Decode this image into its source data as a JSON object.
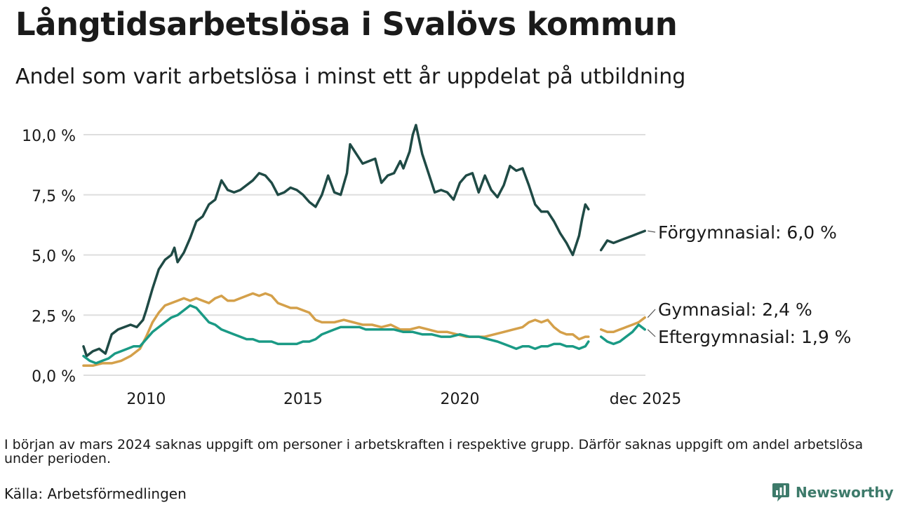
{
  "header": {
    "title": "Långtidsarbetslösa i Svalövs kommun",
    "subtitle": "Andel som varit arbetslösa i minst ett år uppdelat på utbildning"
  },
  "footer": {
    "note": "I början av mars 2024 saknas uppgift om personer i arbetskraften i respektive grupp. Därför saknas uppgift om andel arbetslösa under perioden.",
    "source": "Källa: Arbetsförmedlingen",
    "brand": "Newsworthy"
  },
  "colors": {
    "forgymnasial": "#1f4a45",
    "gymnasial": "#d4a04a",
    "eftergymnasial": "#1a9a85",
    "grid": "#dedede",
    "brand": "#3d7a6a"
  },
  "chart_data": {
    "type": "line",
    "title": "Långtidsarbetslösa i Svalövs kommun",
    "subtitle": "Andel som varit arbetslösa i minst ett år uppdelat på utbildning",
    "xlabel": "",
    "ylabel": "",
    "x_range": [
      2008.0,
      2025.917
    ],
    "x_ticks": [
      {
        "value": 2010,
        "label": "2010"
      },
      {
        "value": 2015,
        "label": "2015"
      },
      {
        "value": 2020,
        "label": "2020"
      },
      {
        "value": 2025.917,
        "label": "dec 2025"
      }
    ],
    "ylim": [
      0,
      10.5
    ],
    "y_ticks": [
      {
        "value": 0,
        "label": "0,0 %"
      },
      {
        "value": 2.5,
        "label": "2,5 %"
      },
      {
        "value": 5,
        "label": "5,0 %"
      },
      {
        "value": 7.5,
        "label": "7,5 %"
      },
      {
        "value": 10,
        "label": "10,0 %"
      }
    ],
    "grid": true,
    "gap": [
      2024.0,
      2024.1
    ],
    "series": [
      {
        "name": "Förgymnasial",
        "color_key": "forgymnasial",
        "end_label": "Förgymnasial: 6,0 %",
        "points": [
          [
            2008.0,
            1.2
          ],
          [
            2008.1,
            0.8
          ],
          [
            2008.3,
            1.0
          ],
          [
            2008.5,
            1.1
          ],
          [
            2008.7,
            0.9
          ],
          [
            2008.9,
            1.7
          ],
          [
            2009.1,
            1.9
          ],
          [
            2009.3,
            2.0
          ],
          [
            2009.5,
            2.1
          ],
          [
            2009.7,
            2.0
          ],
          [
            2009.9,
            2.3
          ],
          [
            2010.0,
            2.7
          ],
          [
            2010.2,
            3.6
          ],
          [
            2010.4,
            4.4
          ],
          [
            2010.6,
            4.8
          ],
          [
            2010.8,
            5.0
          ],
          [
            2010.9,
            5.3
          ],
          [
            2011.0,
            4.7
          ],
          [
            2011.2,
            5.1
          ],
          [
            2011.4,
            5.7
          ],
          [
            2011.6,
            6.4
          ],
          [
            2011.8,
            6.6
          ],
          [
            2012.0,
            7.1
          ],
          [
            2012.2,
            7.3
          ],
          [
            2012.4,
            8.1
          ],
          [
            2012.6,
            7.7
          ],
          [
            2012.8,
            7.6
          ],
          [
            2013.0,
            7.7
          ],
          [
            2013.2,
            7.9
          ],
          [
            2013.4,
            8.1
          ],
          [
            2013.6,
            8.4
          ],
          [
            2013.8,
            8.3
          ],
          [
            2014.0,
            8.0
          ],
          [
            2014.2,
            7.5
          ],
          [
            2014.4,
            7.6
          ],
          [
            2014.6,
            7.8
          ],
          [
            2014.8,
            7.7
          ],
          [
            2015.0,
            7.5
          ],
          [
            2015.2,
            7.2
          ],
          [
            2015.4,
            7.0
          ],
          [
            2015.6,
            7.5
          ],
          [
            2015.8,
            8.3
          ],
          [
            2016.0,
            7.6
          ],
          [
            2016.2,
            7.5
          ],
          [
            2016.4,
            8.4
          ],
          [
            2016.5,
            9.6
          ],
          [
            2016.7,
            9.2
          ],
          [
            2016.9,
            8.8
          ],
          [
            2017.1,
            8.9
          ],
          [
            2017.3,
            9.0
          ],
          [
            2017.5,
            8.0
          ],
          [
            2017.7,
            8.3
          ],
          [
            2017.9,
            8.4
          ],
          [
            2018.1,
            8.9
          ],
          [
            2018.2,
            8.6
          ],
          [
            2018.4,
            9.3
          ],
          [
            2018.5,
            10.0
          ],
          [
            2018.6,
            10.4
          ],
          [
            2018.8,
            9.2
          ],
          [
            2019.0,
            8.4
          ],
          [
            2019.2,
            7.6
          ],
          [
            2019.4,
            7.7
          ],
          [
            2019.6,
            7.6
          ],
          [
            2019.8,
            7.3
          ],
          [
            2020.0,
            8.0
          ],
          [
            2020.2,
            8.3
          ],
          [
            2020.4,
            8.4
          ],
          [
            2020.6,
            7.6
          ],
          [
            2020.8,
            8.3
          ],
          [
            2021.0,
            7.7
          ],
          [
            2021.2,
            7.4
          ],
          [
            2021.4,
            7.9
          ],
          [
            2021.6,
            8.7
          ],
          [
            2021.8,
            8.5
          ],
          [
            2022.0,
            8.6
          ],
          [
            2022.2,
            7.9
          ],
          [
            2022.4,
            7.1
          ],
          [
            2022.6,
            6.8
          ],
          [
            2022.8,
            6.8
          ],
          [
            2023.0,
            6.4
          ],
          [
            2023.2,
            5.9
          ],
          [
            2023.4,
            5.5
          ],
          [
            2023.6,
            5.0
          ],
          [
            2023.8,
            5.8
          ],
          [
            2023.9,
            6.5
          ],
          [
            2024.0,
            7.1
          ],
          [
            2024.1,
            6.9
          ],
          [
            2024.5,
            5.2
          ],
          [
            2024.7,
            5.6
          ],
          [
            2024.9,
            5.5
          ],
          [
            2025.1,
            5.6
          ],
          [
            2025.3,
            5.7
          ],
          [
            2025.5,
            5.8
          ],
          [
            2025.7,
            5.9
          ],
          [
            2025.9,
            6.0
          ]
        ]
      },
      {
        "name": "Gymnasial",
        "color_key": "gymnasial",
        "end_label": "Gymnasial: 2,4 %",
        "points": [
          [
            2008.0,
            0.4
          ],
          [
            2008.3,
            0.4
          ],
          [
            2008.6,
            0.5
          ],
          [
            2008.9,
            0.5
          ],
          [
            2009.2,
            0.6
          ],
          [
            2009.5,
            0.8
          ],
          [
            2009.8,
            1.1
          ],
          [
            2010.0,
            1.6
          ],
          [
            2010.2,
            2.2
          ],
          [
            2010.4,
            2.6
          ],
          [
            2010.6,
            2.9
          ],
          [
            2010.8,
            3.0
          ],
          [
            2011.0,
            3.1
          ],
          [
            2011.2,
            3.2
          ],
          [
            2011.4,
            3.1
          ],
          [
            2011.6,
            3.2
          ],
          [
            2011.8,
            3.1
          ],
          [
            2012.0,
            3.0
          ],
          [
            2012.2,
            3.2
          ],
          [
            2012.4,
            3.3
          ],
          [
            2012.6,
            3.1
          ],
          [
            2012.8,
            3.1
          ],
          [
            2013.0,
            3.2
          ],
          [
            2013.2,
            3.3
          ],
          [
            2013.4,
            3.4
          ],
          [
            2013.6,
            3.3
          ],
          [
            2013.8,
            3.4
          ],
          [
            2014.0,
            3.3
          ],
          [
            2014.2,
            3.0
          ],
          [
            2014.4,
            2.9
          ],
          [
            2014.6,
            2.8
          ],
          [
            2014.8,
            2.8
          ],
          [
            2015.0,
            2.7
          ],
          [
            2015.2,
            2.6
          ],
          [
            2015.4,
            2.3
          ],
          [
            2015.6,
            2.2
          ],
          [
            2015.8,
            2.2
          ],
          [
            2016.0,
            2.2
          ],
          [
            2016.3,
            2.3
          ],
          [
            2016.6,
            2.2
          ],
          [
            2016.9,
            2.1
          ],
          [
            2017.2,
            2.1
          ],
          [
            2017.5,
            2.0
          ],
          [
            2017.8,
            2.1
          ],
          [
            2018.1,
            1.9
          ],
          [
            2018.4,
            1.9
          ],
          [
            2018.7,
            2.0
          ],
          [
            2019.0,
            1.9
          ],
          [
            2019.3,
            1.8
          ],
          [
            2019.6,
            1.8
          ],
          [
            2019.9,
            1.7
          ],
          [
            2020.2,
            1.6
          ],
          [
            2020.5,
            1.6
          ],
          [
            2020.8,
            1.6
          ],
          [
            2021.1,
            1.7
          ],
          [
            2021.4,
            1.8
          ],
          [
            2021.7,
            1.9
          ],
          [
            2022.0,
            2.0
          ],
          [
            2022.2,
            2.2
          ],
          [
            2022.4,
            2.3
          ],
          [
            2022.6,
            2.2
          ],
          [
            2022.8,
            2.3
          ],
          [
            2023.0,
            2.0
          ],
          [
            2023.2,
            1.8
          ],
          [
            2023.4,
            1.7
          ],
          [
            2023.6,
            1.7
          ],
          [
            2023.8,
            1.5
          ],
          [
            2024.0,
            1.6
          ],
          [
            2024.1,
            1.6
          ],
          [
            2024.5,
            1.9
          ],
          [
            2024.7,
            1.8
          ],
          [
            2024.9,
            1.8
          ],
          [
            2025.1,
            1.9
          ],
          [
            2025.3,
            2.0
          ],
          [
            2025.5,
            2.1
          ],
          [
            2025.7,
            2.2
          ],
          [
            2025.9,
            2.4
          ]
        ]
      },
      {
        "name": "Eftergymnasial",
        "color_key": "eftergymnasial",
        "end_label": "Eftergymnasial: 1,9 %",
        "points": [
          [
            2008.0,
            0.8
          ],
          [
            2008.2,
            0.6
          ],
          [
            2008.4,
            0.5
          ],
          [
            2008.6,
            0.6
          ],
          [
            2008.8,
            0.7
          ],
          [
            2009.0,
            0.9
          ],
          [
            2009.2,
            1.0
          ],
          [
            2009.4,
            1.1
          ],
          [
            2009.6,
            1.2
          ],
          [
            2009.8,
            1.2
          ],
          [
            2010.0,
            1.5
          ],
          [
            2010.2,
            1.8
          ],
          [
            2010.4,
            2.0
          ],
          [
            2010.6,
            2.2
          ],
          [
            2010.8,
            2.4
          ],
          [
            2011.0,
            2.5
          ],
          [
            2011.2,
            2.7
          ],
          [
            2011.4,
            2.9
          ],
          [
            2011.6,
            2.8
          ],
          [
            2011.8,
            2.5
          ],
          [
            2012.0,
            2.2
          ],
          [
            2012.2,
            2.1
          ],
          [
            2012.4,
            1.9
          ],
          [
            2012.6,
            1.8
          ],
          [
            2012.8,
            1.7
          ],
          [
            2013.0,
            1.6
          ],
          [
            2013.2,
            1.5
          ],
          [
            2013.4,
            1.5
          ],
          [
            2013.6,
            1.4
          ],
          [
            2013.8,
            1.4
          ],
          [
            2014.0,
            1.4
          ],
          [
            2014.2,
            1.3
          ],
          [
            2014.4,
            1.3
          ],
          [
            2014.6,
            1.3
          ],
          [
            2014.8,
            1.3
          ],
          [
            2015.0,
            1.4
          ],
          [
            2015.2,
            1.4
          ],
          [
            2015.4,
            1.5
          ],
          [
            2015.6,
            1.7
          ],
          [
            2015.8,
            1.8
          ],
          [
            2016.0,
            1.9
          ],
          [
            2016.2,
            2.0
          ],
          [
            2016.4,
            2.0
          ],
          [
            2016.6,
            2.0
          ],
          [
            2016.8,
            2.0
          ],
          [
            2017.0,
            1.9
          ],
          [
            2017.3,
            1.9
          ],
          [
            2017.6,
            1.9
          ],
          [
            2017.9,
            1.9
          ],
          [
            2018.2,
            1.8
          ],
          [
            2018.5,
            1.8
          ],
          [
            2018.8,
            1.7
          ],
          [
            2019.1,
            1.7
          ],
          [
            2019.4,
            1.6
          ],
          [
            2019.7,
            1.6
          ],
          [
            2020.0,
            1.7
          ],
          [
            2020.3,
            1.6
          ],
          [
            2020.6,
            1.6
          ],
          [
            2020.9,
            1.5
          ],
          [
            2021.2,
            1.4
          ],
          [
            2021.4,
            1.3
          ],
          [
            2021.6,
            1.2
          ],
          [
            2021.8,
            1.1
          ],
          [
            2022.0,
            1.2
          ],
          [
            2022.2,
            1.2
          ],
          [
            2022.4,
            1.1
          ],
          [
            2022.6,
            1.2
          ],
          [
            2022.8,
            1.2
          ],
          [
            2023.0,
            1.3
          ],
          [
            2023.2,
            1.3
          ],
          [
            2023.4,
            1.2
          ],
          [
            2023.6,
            1.2
          ],
          [
            2023.8,
            1.1
          ],
          [
            2024.0,
            1.2
          ],
          [
            2024.1,
            1.4
          ],
          [
            2024.5,
            1.6
          ],
          [
            2024.7,
            1.4
          ],
          [
            2024.9,
            1.3
          ],
          [
            2025.1,
            1.4
          ],
          [
            2025.3,
            1.6
          ],
          [
            2025.5,
            1.8
          ],
          [
            2025.7,
            2.1
          ],
          [
            2025.9,
            1.9
          ]
        ]
      }
    ]
  }
}
